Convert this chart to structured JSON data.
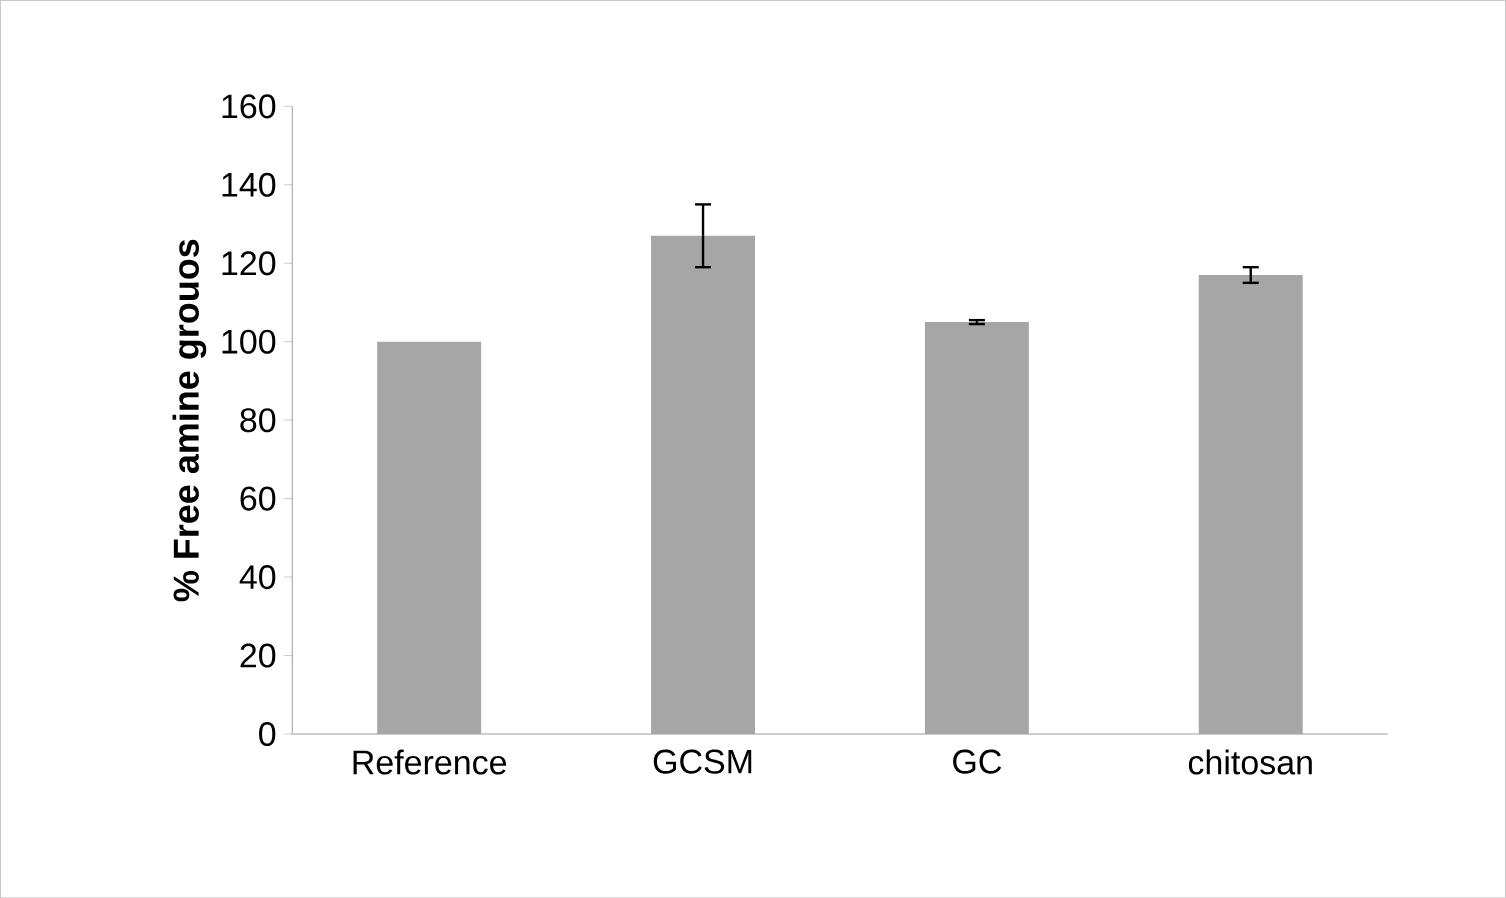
{
  "chart_data": {
    "type": "bar",
    "ylabel": "%   Free amine grouos",
    "categories": [
      "Reference",
      "GCSM",
      "GC",
      "chitosan"
    ],
    "values": [
      100,
      127,
      105,
      117
    ],
    "errors": [
      null,
      8,
      0.5,
      2
    ],
    "color": "#a6a6a6",
    "ylim": [
      0,
      160
    ],
    "yticks": [
      0,
      20,
      40,
      60,
      80,
      100,
      120,
      140,
      160
    ],
    "grid": false
  }
}
